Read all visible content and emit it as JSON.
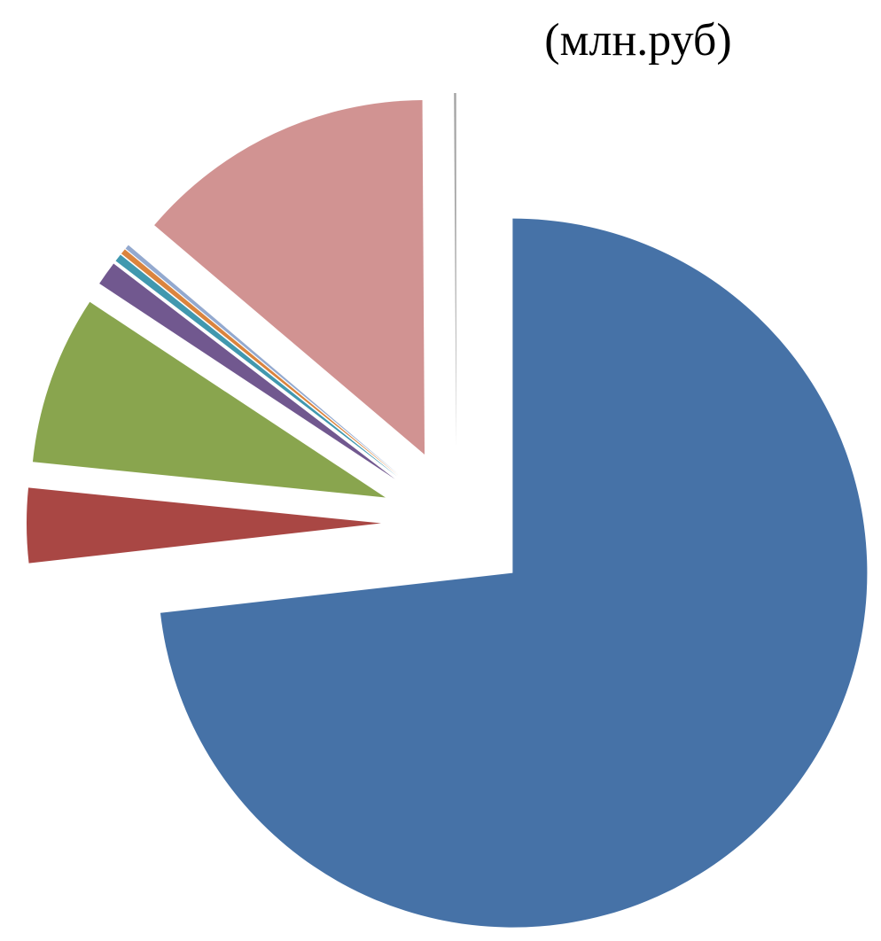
{
  "chart_data": {
    "type": "pie",
    "title": "(млн.руб)",
    "exploded": true,
    "start_angle_deg": 0,
    "direction": "clockwise",
    "slices": [
      {
        "value": 73.2,
        "color": "#4672A7"
      },
      {
        "value": 3.4,
        "color": "#A94744"
      },
      {
        "value": 7.7,
        "color": "#89A54E"
      },
      {
        "value": 1.1,
        "color": "#71588F"
      },
      {
        "value": 0.35,
        "color": "#4198AF"
      },
      {
        "value": 0.25,
        "color": "#DB843D"
      },
      {
        "value": 0.2,
        "color": "#93A9CF"
      },
      {
        "value": 13.7,
        "color": "#D19392"
      },
      {
        "value": 0.1,
        "color": "#A5A5A5"
      }
    ]
  }
}
